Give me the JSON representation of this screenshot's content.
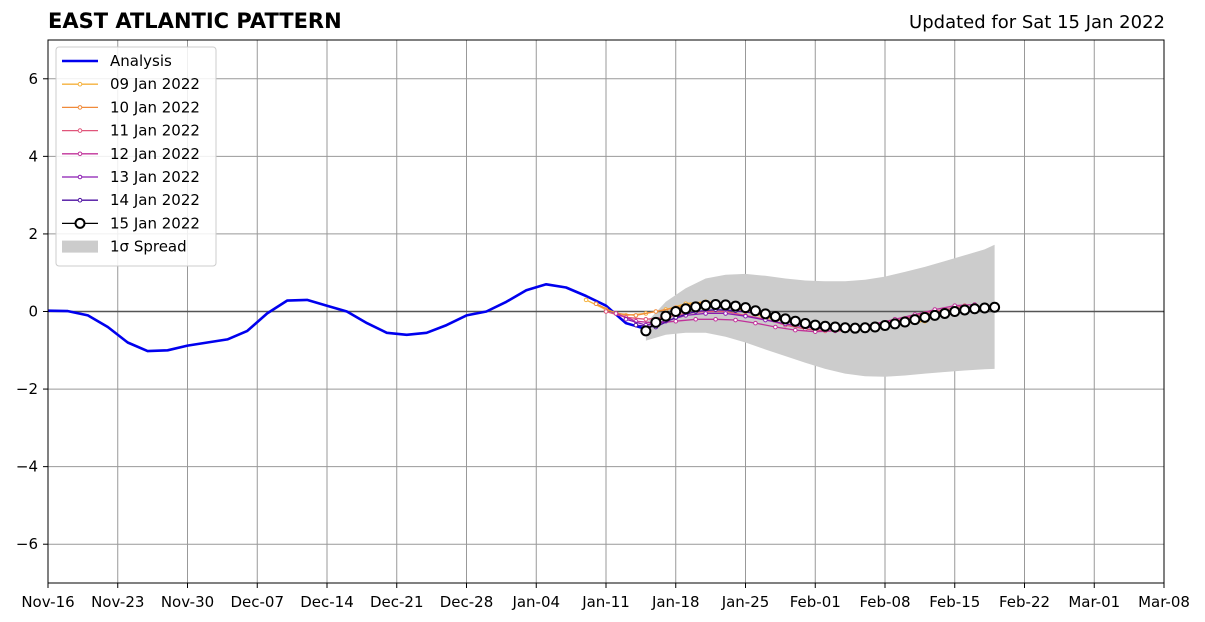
{
  "header": {
    "title": "EAST ATLANTIC PATTERN",
    "subtitle": "Updated for Sat 15 Jan 2022"
  },
  "chart_data": {
    "type": "line",
    "title": "EAST ATLANTIC PATTERN",
    "subtitle": "Updated for Sat 15 Jan 2022",
    "xlim": [
      "2021-11-16",
      "2022-03-08"
    ],
    "ylim": [
      -7,
      7
    ],
    "x_ticks": [
      "Nov-16",
      "Nov-23",
      "Nov-30",
      "Dec-07",
      "Dec-14",
      "Dec-21",
      "Dec-28",
      "Jan-04",
      "Jan-11",
      "Jan-18",
      "Jan-25",
      "Feb-01",
      "Feb-08",
      "Feb-15",
      "Feb-22",
      "Mar-01",
      "Mar-08"
    ],
    "y_ticks": [
      6,
      4,
      2,
      0,
      -2,
      -4,
      -6
    ],
    "y_tick_labels": [
      "6",
      "4",
      "2",
      "0",
      "−2",
      "−4",
      "−6"
    ],
    "grid": true,
    "zero_line": true,
    "legend_position": "top-left",
    "analysis": {
      "name": "Analysis",
      "color": "#0000ee",
      "points": [
        [
          "2021-11-16",
          0.02
        ],
        [
          "2021-11-18",
          0.01
        ],
        [
          "2021-11-20",
          -0.1
        ],
        [
          "2021-11-22",
          -0.4
        ],
        [
          "2021-11-24",
          -0.8
        ],
        [
          "2021-11-26",
          -1.02
        ],
        [
          "2021-11-28",
          -1.0
        ],
        [
          "2021-11-30",
          -0.88
        ],
        [
          "2021-12-02",
          -0.8
        ],
        [
          "2021-12-04",
          -0.72
        ],
        [
          "2021-12-06",
          -0.5
        ],
        [
          "2021-12-08",
          -0.05
        ],
        [
          "2021-12-10",
          0.28
        ],
        [
          "2021-12-12",
          0.3
        ],
        [
          "2021-12-14",
          0.15
        ],
        [
          "2021-12-16",
          0.0
        ],
        [
          "2021-12-18",
          -0.3
        ],
        [
          "2021-12-20",
          -0.55
        ],
        [
          "2021-12-22",
          -0.6
        ],
        [
          "2021-12-24",
          -0.55
        ],
        [
          "2021-12-26",
          -0.35
        ],
        [
          "2021-12-28",
          -0.1
        ],
        [
          "2021-12-30",
          0.0
        ],
        [
          "2022-01-01",
          0.25
        ],
        [
          "2022-01-03",
          0.55
        ],
        [
          "2022-01-05",
          0.7
        ],
        [
          "2022-01-07",
          0.62
        ],
        [
          "2022-01-09",
          0.4
        ],
        [
          "2022-01-11",
          0.15
        ],
        [
          "2022-01-13",
          -0.3
        ],
        [
          "2022-01-15",
          -0.45
        ]
      ]
    },
    "forecasts": [
      {
        "name": "09 Jan 2022",
        "color": "#f5b13b",
        "points": [
          [
            "2022-01-09",
            0.3
          ],
          [
            "2022-01-11",
            0.05
          ],
          [
            "2022-01-13",
            -0.1
          ],
          [
            "2022-01-15",
            -0.05
          ],
          [
            "2022-01-17",
            0.05
          ],
          [
            "2022-01-19",
            0.2
          ],
          [
            "2022-01-21",
            0.25
          ],
          [
            "2022-01-23",
            0.15
          ],
          [
            "2022-01-25",
            0.0
          ],
          [
            "2022-01-27",
            -0.15
          ],
          [
            "2022-01-29",
            -0.25
          ],
          [
            "2022-01-31",
            -0.3
          ],
          [
            "2022-02-02",
            -0.35
          ],
          [
            "2022-02-04",
            -0.38
          ],
          [
            "2022-02-06",
            -0.4
          ],
          [
            "2022-02-08",
            -0.35
          ],
          [
            "2022-02-10",
            -0.3
          ],
          [
            "2022-02-12",
            -0.25
          ]
        ]
      },
      {
        "name": "10 Jan 2022",
        "color": "#f08a3a",
        "points": [
          [
            "2022-01-10",
            0.2
          ],
          [
            "2022-01-12",
            -0.05
          ],
          [
            "2022-01-14",
            -0.1
          ],
          [
            "2022-01-16",
            0.0
          ],
          [
            "2022-01-18",
            0.1
          ],
          [
            "2022-01-20",
            0.2
          ],
          [
            "2022-01-22",
            0.25
          ],
          [
            "2022-01-24",
            0.1
          ],
          [
            "2022-01-26",
            -0.05
          ],
          [
            "2022-01-28",
            -0.2
          ],
          [
            "2022-01-30",
            -0.3
          ],
          [
            "2022-02-01",
            -0.35
          ],
          [
            "2022-02-03",
            -0.4
          ],
          [
            "2022-02-05",
            -0.42
          ],
          [
            "2022-02-07",
            -0.38
          ],
          [
            "2022-02-09",
            -0.3
          ],
          [
            "2022-02-11",
            -0.22
          ],
          [
            "2022-02-13",
            -0.15
          ]
        ]
      },
      {
        "name": "11 Jan 2022",
        "color": "#e0557a",
        "points": [
          [
            "2022-01-11",
            0.0
          ],
          [
            "2022-01-13",
            -0.15
          ],
          [
            "2022-01-15",
            -0.2
          ],
          [
            "2022-01-17",
            -0.15
          ],
          [
            "2022-01-19",
            -0.05
          ],
          [
            "2022-01-21",
            0.0
          ],
          [
            "2022-01-23",
            0.0
          ],
          [
            "2022-01-25",
            -0.1
          ],
          [
            "2022-01-27",
            -0.2
          ],
          [
            "2022-01-29",
            -0.35
          ],
          [
            "2022-01-31",
            -0.45
          ],
          [
            "2022-02-02",
            -0.5
          ],
          [
            "2022-02-04",
            -0.5
          ],
          [
            "2022-02-06",
            -0.42
          ],
          [
            "2022-02-08",
            -0.3
          ],
          [
            "2022-02-10",
            -0.18
          ],
          [
            "2022-02-12",
            -0.05
          ],
          [
            "2022-02-14",
            0.05
          ],
          [
            "2022-02-16",
            0.15
          ]
        ]
      },
      {
        "name": "12 Jan 2022",
        "color": "#c0329a",
        "points": [
          [
            "2022-01-12",
            -0.05
          ],
          [
            "2022-01-14",
            -0.25
          ],
          [
            "2022-01-16",
            -0.3
          ],
          [
            "2022-01-18",
            -0.25
          ],
          [
            "2022-01-20",
            -0.2
          ],
          [
            "2022-01-22",
            -0.2
          ],
          [
            "2022-01-24",
            -0.22
          ],
          [
            "2022-01-26",
            -0.3
          ],
          [
            "2022-01-28",
            -0.4
          ],
          [
            "2022-01-30",
            -0.48
          ],
          [
            "2022-02-01",
            -0.52
          ],
          [
            "2022-02-03",
            -0.5
          ],
          [
            "2022-02-05",
            -0.42
          ],
          [
            "2022-02-07",
            -0.32
          ],
          [
            "2022-02-09",
            -0.2
          ],
          [
            "2022-02-11",
            -0.08
          ],
          [
            "2022-02-13",
            0.05
          ],
          [
            "2022-02-15",
            0.15
          ],
          [
            "2022-02-17",
            0.18
          ]
        ]
      },
      {
        "name": "13 Jan 2022",
        "color": "#8a1ab2",
        "points": [
          [
            "2022-01-13",
            -0.2
          ],
          [
            "2022-01-15",
            -0.35
          ],
          [
            "2022-01-17",
            -0.25
          ],
          [
            "2022-01-19",
            -0.1
          ],
          [
            "2022-01-21",
            -0.05
          ],
          [
            "2022-01-23",
            -0.05
          ],
          [
            "2022-01-25",
            -0.12
          ],
          [
            "2022-01-27",
            -0.22
          ],
          [
            "2022-01-29",
            -0.32
          ],
          [
            "2022-01-31",
            -0.4
          ],
          [
            "2022-02-02",
            -0.45
          ],
          [
            "2022-02-04",
            -0.45
          ],
          [
            "2022-02-06",
            -0.4
          ],
          [
            "2022-02-08",
            -0.32
          ],
          [
            "2022-02-10",
            -0.22
          ],
          [
            "2022-02-12",
            -0.12
          ],
          [
            "2022-02-14",
            -0.05
          ],
          [
            "2022-02-16",
            0.0
          ],
          [
            "2022-02-18",
            0.05
          ]
        ]
      },
      {
        "name": "14 Jan 2022",
        "color": "#4b0fa0",
        "points": [
          [
            "2022-01-14",
            -0.35
          ],
          [
            "2022-01-16",
            -0.4
          ],
          [
            "2022-01-18",
            -0.15
          ],
          [
            "2022-01-20",
            0.0
          ],
          [
            "2022-01-22",
            0.05
          ],
          [
            "2022-01-24",
            0.02
          ],
          [
            "2022-01-26",
            -0.05
          ],
          [
            "2022-01-28",
            -0.15
          ],
          [
            "2022-01-30",
            -0.25
          ],
          [
            "2022-02-01",
            -0.35
          ],
          [
            "2022-02-03",
            -0.4
          ],
          [
            "2022-02-05",
            -0.42
          ],
          [
            "2022-02-07",
            -0.38
          ],
          [
            "2022-02-09",
            -0.3
          ],
          [
            "2022-02-11",
            -0.22
          ],
          [
            "2022-02-13",
            -0.12
          ],
          [
            "2022-02-15",
            -0.05
          ],
          [
            "2022-02-17",
            0.02
          ],
          [
            "2022-02-19",
            0.08
          ]
        ]
      },
      {
        "name": "15 Jan 2022",
        "color": "#000000",
        "big_markers": true,
        "points": [
          [
            "2022-01-15",
            -0.5
          ],
          [
            "2022-01-16",
            -0.28
          ],
          [
            "2022-01-17",
            -0.12
          ],
          [
            "2022-01-18",
            0.0
          ],
          [
            "2022-01-19",
            0.07
          ],
          [
            "2022-01-20",
            0.12
          ],
          [
            "2022-01-21",
            0.16
          ],
          [
            "2022-01-22",
            0.18
          ],
          [
            "2022-01-23",
            0.17
          ],
          [
            "2022-01-24",
            0.14
          ],
          [
            "2022-01-25",
            0.1
          ],
          [
            "2022-01-26",
            0.02
          ],
          [
            "2022-01-27",
            -0.06
          ],
          [
            "2022-01-28",
            -0.13
          ],
          [
            "2022-01-29",
            -0.19
          ],
          [
            "2022-01-30",
            -0.25
          ],
          [
            "2022-01-31",
            -0.31
          ],
          [
            "2022-02-01",
            -0.35
          ],
          [
            "2022-02-02",
            -0.38
          ],
          [
            "2022-02-03",
            -0.4
          ],
          [
            "2022-02-04",
            -0.42
          ],
          [
            "2022-02-05",
            -0.43
          ],
          [
            "2022-02-06",
            -0.42
          ],
          [
            "2022-02-07",
            -0.4
          ],
          [
            "2022-02-08",
            -0.36
          ],
          [
            "2022-02-09",
            -0.32
          ],
          [
            "2022-02-10",
            -0.27
          ],
          [
            "2022-02-11",
            -0.21
          ],
          [
            "2022-02-12",
            -0.15
          ],
          [
            "2022-02-13",
            -0.1
          ],
          [
            "2022-02-14",
            -0.05
          ],
          [
            "2022-02-15",
            0.0
          ],
          [
            "2022-02-16",
            0.04
          ],
          [
            "2022-02-17",
            0.07
          ],
          [
            "2022-02-18",
            0.09
          ],
          [
            "2022-02-19",
            0.11
          ]
        ]
      }
    ],
    "spread": {
      "name": "1σ Spread",
      "color": "#cccccc",
      "points": [
        [
          "2022-01-15",
          -0.75,
          -0.3
        ],
        [
          "2022-01-17",
          -0.6,
          0.25
        ],
        [
          "2022-01-19",
          -0.55,
          0.6
        ],
        [
          "2022-01-21",
          -0.55,
          0.85
        ],
        [
          "2022-01-23",
          -0.65,
          0.95
        ],
        [
          "2022-01-25",
          -0.8,
          0.97
        ],
        [
          "2022-01-27",
          -0.98,
          0.92
        ],
        [
          "2022-01-29",
          -1.15,
          0.85
        ],
        [
          "2022-01-31",
          -1.32,
          0.8
        ],
        [
          "2022-02-02",
          -1.48,
          0.78
        ],
        [
          "2022-02-04",
          -1.6,
          0.78
        ],
        [
          "2022-02-06",
          -1.67,
          0.82
        ],
        [
          "2022-02-08",
          -1.68,
          0.9
        ],
        [
          "2022-02-10",
          -1.65,
          1.02
        ],
        [
          "2022-02-12",
          -1.6,
          1.15
        ],
        [
          "2022-02-14",
          -1.56,
          1.3
        ],
        [
          "2022-02-16",
          -1.52,
          1.45
        ],
        [
          "2022-02-18",
          -1.49,
          1.6
        ],
        [
          "2022-02-19",
          -1.48,
          1.72
        ]
      ]
    },
    "legend": {
      "analysis_label": "Analysis",
      "spread_label": "1σ Spread"
    }
  }
}
